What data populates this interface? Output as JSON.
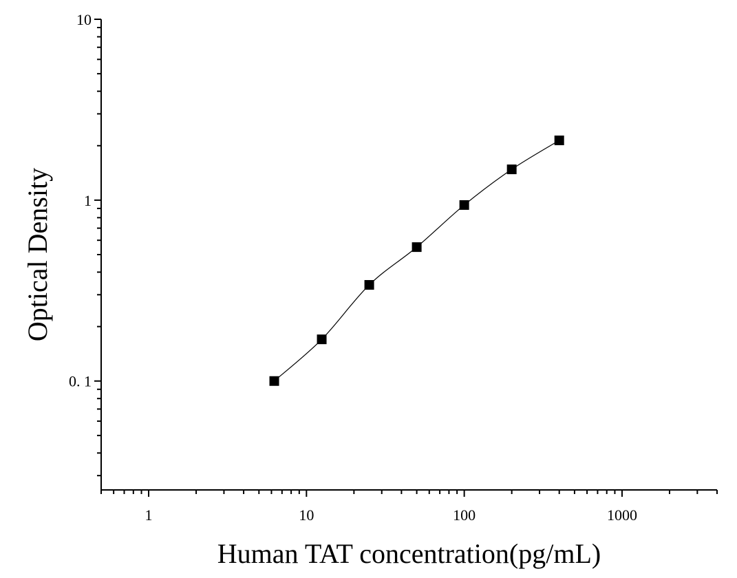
{
  "chart_data": {
    "type": "scatter",
    "title": "",
    "xlabel": "Human TAT concentration(pg/mL)",
    "ylabel": "Optical Density",
    "xscale": "log",
    "yscale": "log",
    "xlim": [
      0.5,
      4000
    ],
    "ylim": [
      0.025,
      10
    ],
    "xticks": [
      1,
      10,
      100,
      1000
    ],
    "xtick_labels": [
      "1",
      "10",
      "100",
      "1000"
    ],
    "yticks": [
      0.1,
      1,
      10
    ],
    "ytick_labels": [
      "0. 1",
      "1",
      "10"
    ],
    "grid": false,
    "legend": "none",
    "marker": "square",
    "fit_line": true,
    "colors": {
      "marker": "#000000",
      "line": "#000000",
      "axis": "#000000"
    },
    "series": [
      {
        "x": [
          6.25,
          12.5,
          25,
          50,
          100,
          200,
          400
        ],
        "y": [
          0.1,
          0.17,
          0.34,
          0.55,
          0.94,
          1.48,
          2.14
        ]
      }
    ]
  }
}
